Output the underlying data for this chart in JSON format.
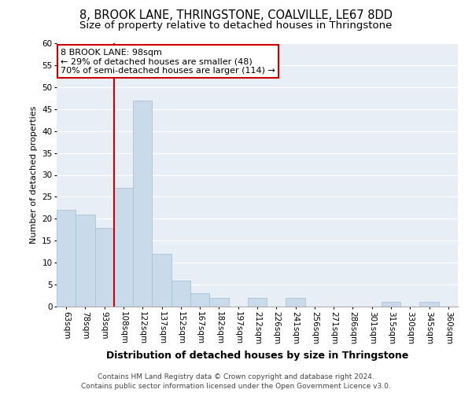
{
  "title_line1": "8, BROOK LANE, THRINGSTONE, COALVILLE, LE67 8DD",
  "title_line2": "Size of property relative to detached houses in Thringstone",
  "xlabel": "Distribution of detached houses by size in Thringstone",
  "ylabel": "Number of detached properties",
  "categories": [
    "63sqm",
    "78sqm",
    "93sqm",
    "108sqm",
    "122sqm",
    "137sqm",
    "152sqm",
    "167sqm",
    "182sqm",
    "197sqm",
    "212sqm",
    "226sqm",
    "241sqm",
    "256sqm",
    "271sqm",
    "286sqm",
    "301sqm",
    "315sqm",
    "330sqm",
    "345sqm",
    "360sqm"
  ],
  "values": [
    22,
    21,
    18,
    27,
    47,
    12,
    6,
    3,
    2,
    0,
    2,
    0,
    2,
    0,
    0,
    0,
    0,
    1,
    0,
    1,
    0
  ],
  "bar_color": "#c9daea",
  "bar_edge_color": "#a8c4d8",
  "vline_color": "#cc0000",
  "annotation_text": "8 BROOK LANE: 98sqm\n← 29% of detached houses are smaller (48)\n70% of semi-detached houses are larger (114) →",
  "annotation_box_color": "#ffffff",
  "annotation_box_edge": "#cc0000",
  "ylim": [
    0,
    60
  ],
  "yticks": [
    0,
    5,
    10,
    15,
    20,
    25,
    30,
    35,
    40,
    45,
    50,
    55,
    60
  ],
  "plot_bg_color": "#e8eef5",
  "footer_line1": "Contains HM Land Registry data © Crown copyright and database right 2024.",
  "footer_line2": "Contains public sector information licensed under the Open Government Licence v3.0.",
  "title1_fontsize": 10.5,
  "title2_fontsize": 9.5,
  "xlabel_fontsize": 9,
  "ylabel_fontsize": 8,
  "tick_fontsize": 7.5,
  "annotation_fontsize": 8,
  "footer_fontsize": 6.5
}
